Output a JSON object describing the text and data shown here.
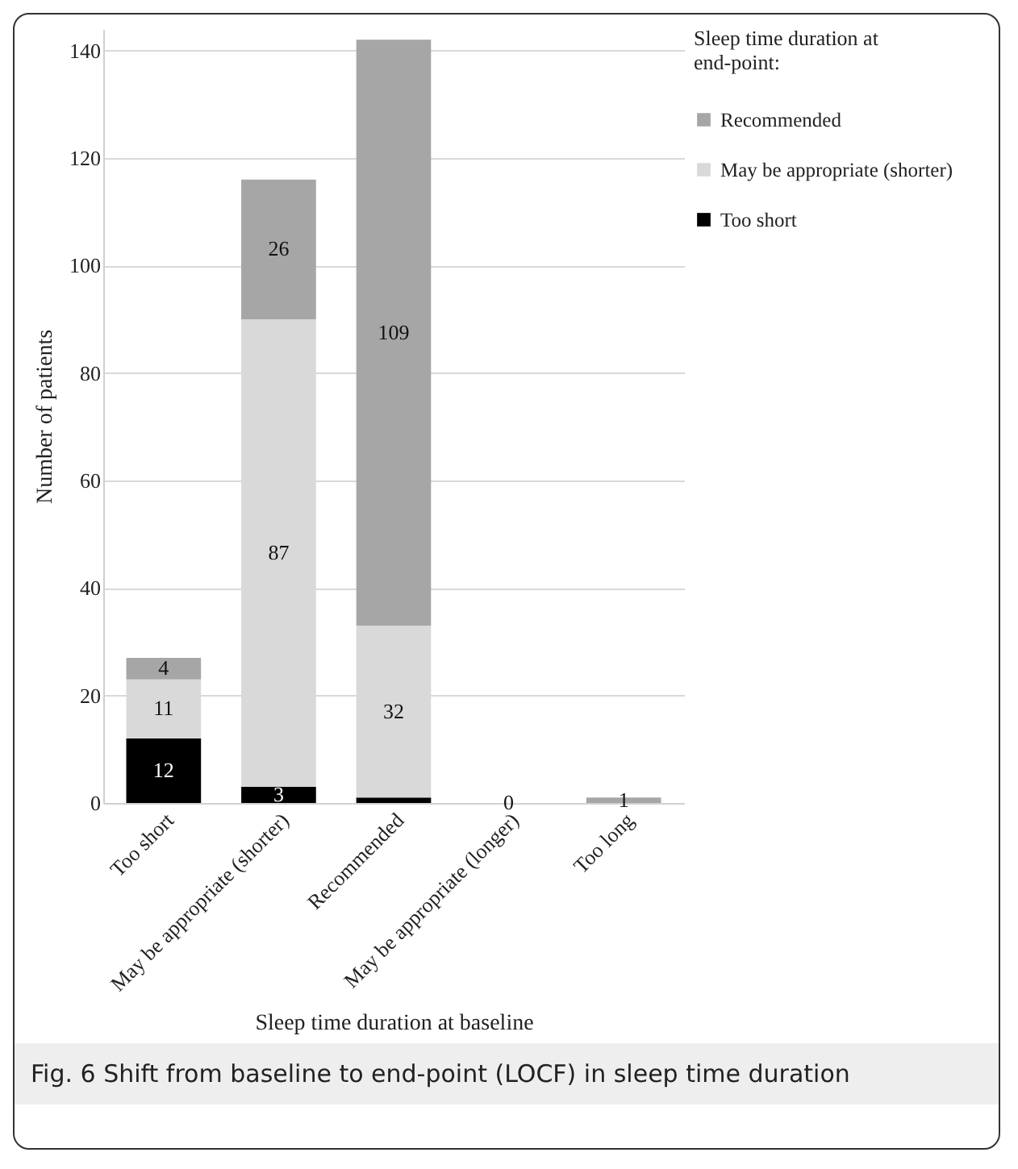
{
  "chart_data": {
    "type": "bar",
    "stacked": true,
    "xlabel": "Sleep time duration at baseline",
    "ylabel": "Number of patients",
    "legend_title": "Sleep time duration at end-point:",
    "legend": "right",
    "grid": "y",
    "categories": [
      "Too short",
      "May be appropriate (shorter)",
      "Recommended",
      "May be appropriate (longer)",
      "Too long"
    ],
    "ylim": [
      0,
      144
    ],
    "yticks": [
      0,
      20,
      40,
      60,
      80,
      100,
      120,
      140
    ],
    "series": [
      {
        "name": "Too short",
        "color": "#000000",
        "values": [
          12,
          3,
          1,
          0,
          0
        ],
        "value_labels": [
          "12",
          "3",
          null,
          "0",
          null
        ]
      },
      {
        "name": "May be appropriate (shorter)",
        "color": "#d9d9d9",
        "values": [
          11,
          87,
          32,
          0,
          0
        ],
        "value_labels": [
          "11",
          "87",
          "32",
          null,
          null
        ]
      },
      {
        "name": "Recommended",
        "color": "#a6a6a6",
        "values": [
          4,
          26,
          109,
          0,
          1
        ],
        "value_labels": [
          "4",
          "26",
          "109",
          null,
          "1"
        ]
      }
    ],
    "annotations": [
      "Fig. 6 Shift from baseline to end-point (LOCF) in sleep time duration"
    ]
  }
}
